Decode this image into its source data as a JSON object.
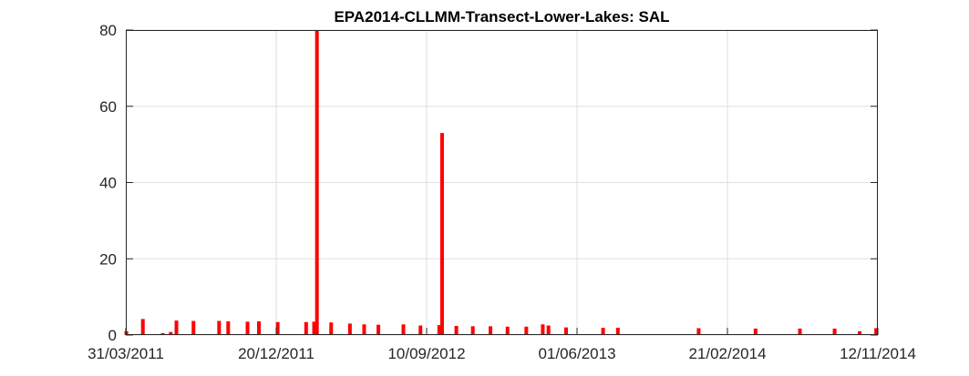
{
  "chart_data": {
    "type": "bar",
    "title": "EPA2014-CLLMM-Transect-Lower-Lakes: SAL",
    "xlabel": "",
    "ylabel": "",
    "x_axis_type": "date",
    "xlim": [
      "2011-03-31",
      "2014-11-12"
    ],
    "ylim": [
      0,
      80
    ],
    "x_ticks": [
      "31/03/2011",
      "20/12/2011",
      "10/09/2012",
      "01/06/2013",
      "21/02/2014",
      "12/11/2014"
    ],
    "y_ticks": [
      "0",
      "20",
      "40",
      "60",
      "80"
    ],
    "grid": true,
    "legend": "none",
    "series_color": "#ff0000",
    "series": [
      {
        "x": [
          "2011-04-01",
          "2011-04-30",
          "2011-06-04",
          "2011-06-18",
          "2011-06-28",
          "2011-07-28",
          "2011-09-11",
          "2011-09-27",
          "2011-10-31",
          "2011-11-20",
          "2011-12-23",
          "2012-02-11",
          "2012-02-25",
          "2012-03-01",
          "2012-03-26",
          "2012-04-28",
          "2012-05-23",
          "2012-06-17",
          "2012-07-31",
          "2012-08-30",
          "2012-10-02",
          "2012-10-07",
          "2012-11-01",
          "2012-11-30",
          "2012-12-31",
          "2013-01-30",
          "2013-03-04",
          "2013-04-02",
          "2013-04-12",
          "2013-05-13",
          "2013-07-17",
          "2013-08-12",
          "2014-01-01",
          "2014-04-11",
          "2014-06-28",
          "2014-08-28",
          "2014-10-11",
          "2014-11-09"
        ],
        "values": [
          1.0,
          4.2,
          0.5,
          0.8,
          3.8,
          3.7,
          3.7,
          3.6,
          3.5,
          3.6,
          3.4,
          3.4,
          3.5,
          80.0,
          3.3,
          3.0,
          2.8,
          2.7,
          2.8,
          2.5,
          2.6,
          53.0,
          2.4,
          2.3,
          2.3,
          2.2,
          2.2,
          2.8,
          2.5,
          2.0,
          1.9,
          1.9,
          1.8,
          1.7,
          1.7,
          1.7,
          1.0,
          1.8
        ]
      }
    ]
  }
}
